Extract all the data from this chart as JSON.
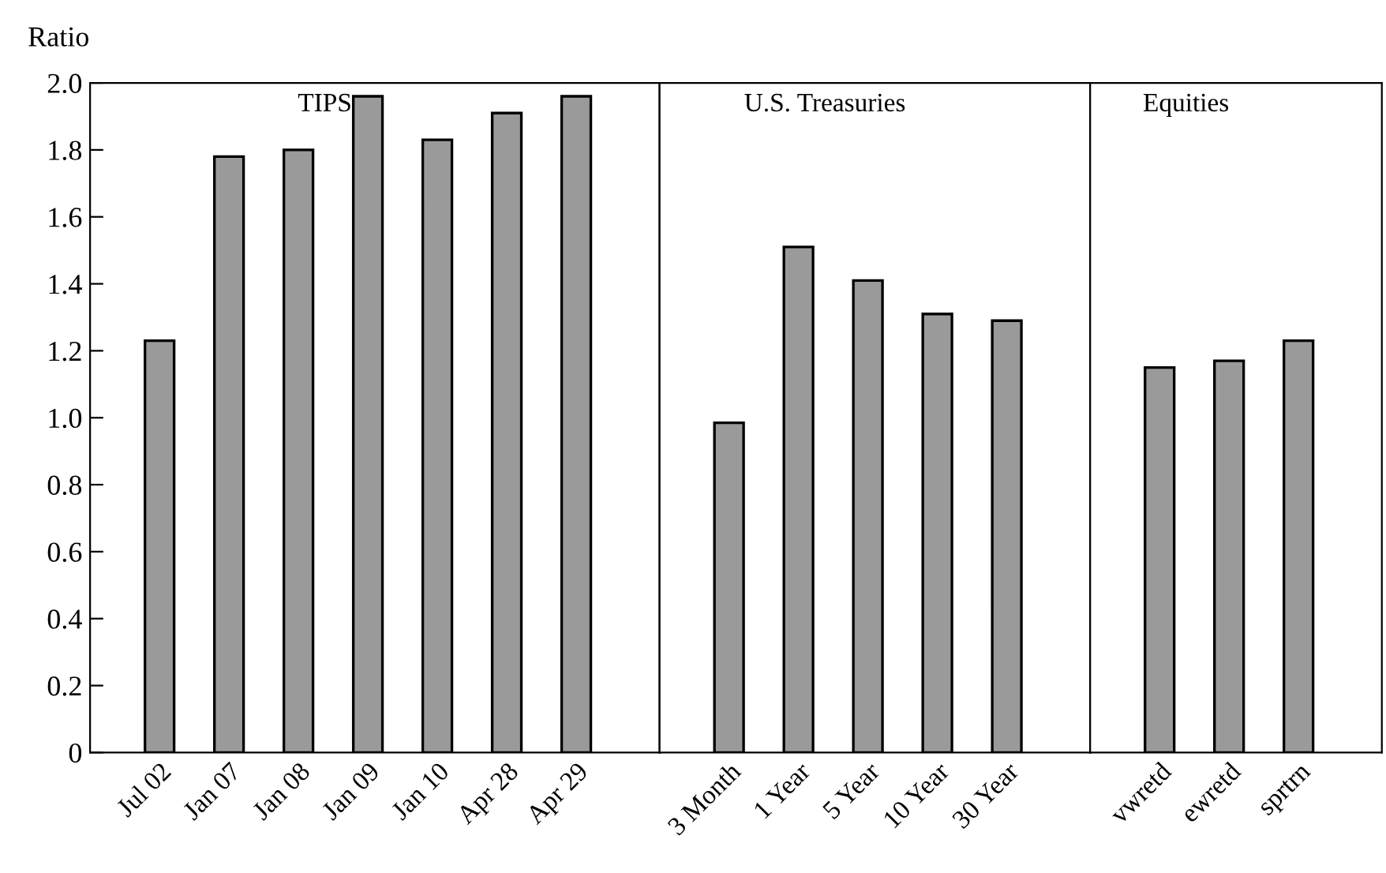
{
  "chart_data": [
    {
      "type": "bar",
      "ylabel": "Ratio",
      "categories": [
        "Jul 02",
        "Jan 07",
        "Jan 08",
        "Jan 09",
        "Jan 10",
        "Apr 28",
        "Apr 29"
      ],
      "values": [
        1.23,
        1.78,
        1.8,
        1.96,
        1.83,
        1.91,
        1.96
      ],
      "color": "#9a9a9a",
      "ylim": [
        0,
        2.0
      ],
      "yticks": [
        {
          "value": 0,
          "label": "0"
        },
        0.2,
        0.4,
        0.6,
        0.8,
        {
          "value": 1.0,
          "label": "1.0"
        },
        1.2,
        1.4,
        1.6,
        1.8,
        {
          "value": 2.0,
          "label": "2.0"
        }
      ],
      "annotations": [
        "TIPS"
      ]
    },
    {
      "type": "bar",
      "categories": [
        "3 Month",
        "1 Year",
        "5 Year",
        "10 Year",
        "30 Year"
      ],
      "values": [
        0.985,
        1.51,
        1.41,
        1.31,
        1.29
      ],
      "color": "#9a9a9a",
      "ylim": [
        0,
        2.0
      ],
      "tick_labels": "x",
      "annotations": [
        "U.S. Treasuries"
      ]
    },
    {
      "type": "bar",
      "categories": [
        "vwretd",
        "ewretd",
        "sprtrn"
      ],
      "values": [
        1.15,
        1.17,
        1.23
      ],
      "color": "#9a9a9a",
      "ylim": [
        0,
        2.0
      ],
      "tick_labels": "x",
      "annotations": [
        "Equities"
      ]
    }
  ]
}
